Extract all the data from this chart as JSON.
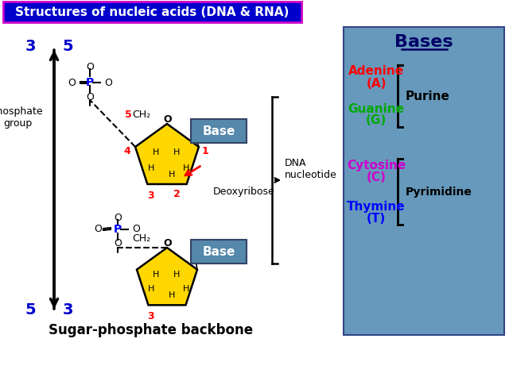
{
  "title": "Structures of nucleic acids (DNA & RNA)",
  "title_bg": "#0000CC",
  "title_fg": "#FFFFFF",
  "title_border": "#CC00CC",
  "bases_bg": "#6699BB",
  "bases_title": "Bases",
  "adenine_color": "#FF0000",
  "guanine_color": "#00AA00",
  "cytosine_color": "#CC00CC",
  "thymine_color": "#0000FF",
  "sugar_yellow": "#FFD700",
  "backbone_label": "Sugar-phosphate backbone",
  "dna_nucleotide_label": "DNA\nnucleotide",
  "deoxyribose_label": "Deoxyribose",
  "phosphate_label": "Phosphate\ngroup",
  "blue_label": "#0000CC"
}
